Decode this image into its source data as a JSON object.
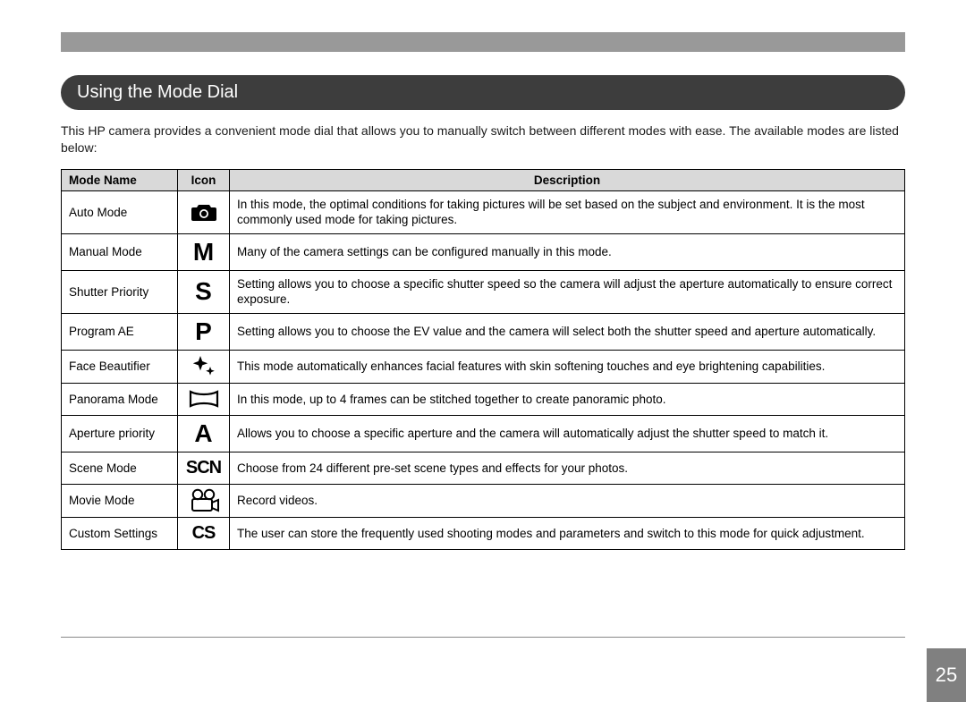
{
  "section_title": "Using the Mode Dial",
  "intro": "This HP camera provides a convenient mode dial that allows you to manually switch between different modes with ease. The available modes are listed below:",
  "columns": {
    "name": "Mode Name",
    "icon": "Icon",
    "desc": "Description"
  },
  "rows": [
    {
      "name": "Auto Mode",
      "icon": "camera",
      "desc": "In this mode, the optimal conditions for taking pictures will be set based on the subject and environment. It is the most commonly used mode for taking pictures."
    },
    {
      "name": "Manual Mode",
      "icon": "M",
      "desc": "Many of the camera settings can be configured manually in this mode."
    },
    {
      "name": "Shutter Priority",
      "icon": "S",
      "desc": "Setting allows you to choose a specific shutter speed so the camera will adjust the aperture automatically to ensure correct exposure."
    },
    {
      "name": "Program AE",
      "icon": "P",
      "desc": "Setting allows you to choose the EV value and the camera will select both the shutter speed and aperture automatically."
    },
    {
      "name": "Face Beautifier",
      "icon": "sparkle",
      "desc": "This mode automatically enhances facial features with skin softening touches and eye brightening capabilities."
    },
    {
      "name": "Panorama Mode",
      "icon": "panorama",
      "desc": "In this mode, up to 4 frames can be stitched together to create panoramic photo."
    },
    {
      "name": "Aperture priority",
      "icon": "A",
      "desc": "Allows you to choose a specific aperture and the camera will automatically adjust the shutter speed to match it."
    },
    {
      "name": "Scene Mode",
      "icon": "SCN",
      "desc": "Choose from 24 different pre-set scene types and effects for your photos."
    },
    {
      "name": "Movie Mode",
      "icon": "movie",
      "desc": "Record videos."
    },
    {
      "name": "Custom Settings",
      "icon": "CS",
      "desc": "The user can store the frequently used shooting modes and parameters and switch to this mode for quick adjustment."
    }
  ],
  "page_number": "25"
}
